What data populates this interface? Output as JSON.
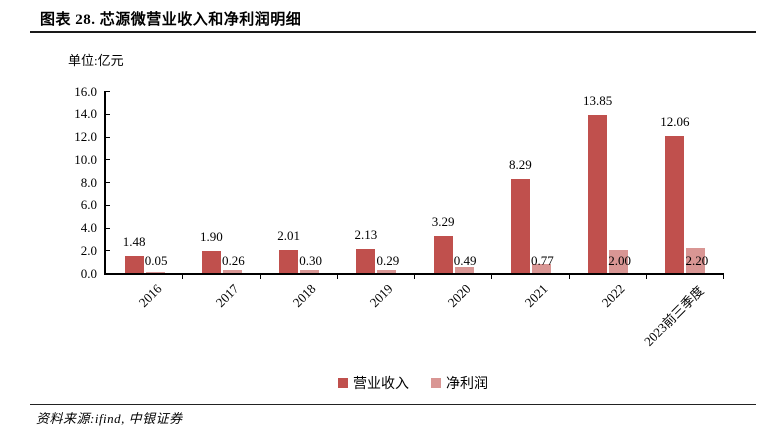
{
  "figure": {
    "title": "图表 28. 芯源微营业收入和净利润明细",
    "unit_label": "单位:亿元",
    "source": "资料来源:ifind, 中银证券"
  },
  "chart_data": {
    "type": "bar",
    "title": "芯源微营业收入和净利润明细",
    "unit": "亿元",
    "categories": [
      "2016",
      "2017",
      "2018",
      "2019",
      "2020",
      "2021",
      "2022",
      "2023前三季度"
    ],
    "series": [
      {
        "name": "营业收入",
        "color": "#C0504D",
        "values": [
          1.48,
          1.9,
          2.01,
          2.13,
          3.29,
          8.29,
          13.85,
          12.06
        ]
      },
      {
        "name": "净利润",
        "color": "#D99694",
        "values": [
          0.05,
          0.26,
          0.3,
          0.29,
          0.49,
          0.77,
          2.0,
          2.2
        ]
      }
    ],
    "ylim": [
      0,
      16
    ],
    "ytick_step": 2,
    "grid": false,
    "legend_position": "bottom",
    "value_label_decimals": 2,
    "axis_color": "#000000"
  }
}
